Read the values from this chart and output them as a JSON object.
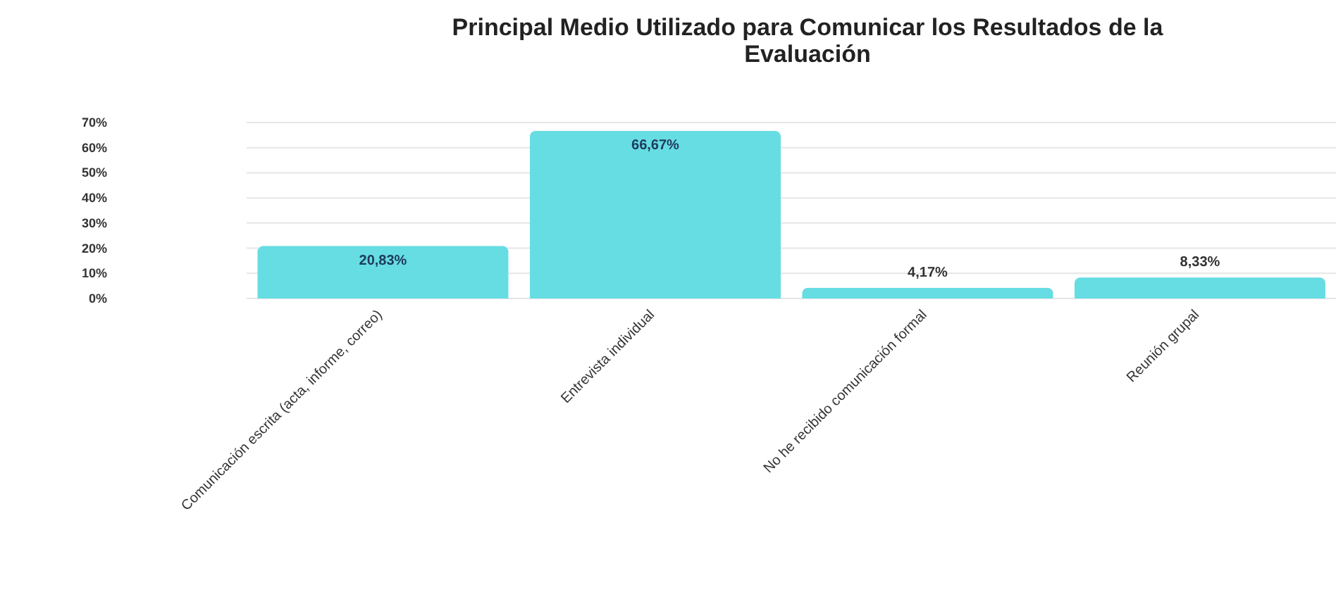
{
  "chart_data": {
    "type": "bar",
    "title": "Principal Medio Utilizado para Comunicar los Resultados de la Evaluación",
    "categories": [
      "Comunicación escrita (acta, informe, correo)",
      "Entrevista individual",
      "No he recibido comunicación formal",
      "Reunión grupal"
    ],
    "values": [
      20.83,
      66.67,
      4.17,
      8.33
    ],
    "value_labels": [
      "20,83%",
      "66,67%",
      "4,17%",
      "8,33%"
    ],
    "color": "#66dde3",
    "ylim": [
      0,
      70
    ],
    "yticks": [
      {
        "value": 0,
        "label": "0%"
      },
      {
        "value": 10,
        "label": "10%"
      },
      {
        "value": 20,
        "label": "20%"
      },
      {
        "value": 30,
        "label": "30%"
      },
      {
        "value": 40,
        "label": "40%"
      },
      {
        "value": 50,
        "label": "50%"
      },
      {
        "value": 60,
        "label": "60%"
      },
      {
        "value": 70,
        "label": "70%"
      }
    ],
    "grid": "y"
  }
}
